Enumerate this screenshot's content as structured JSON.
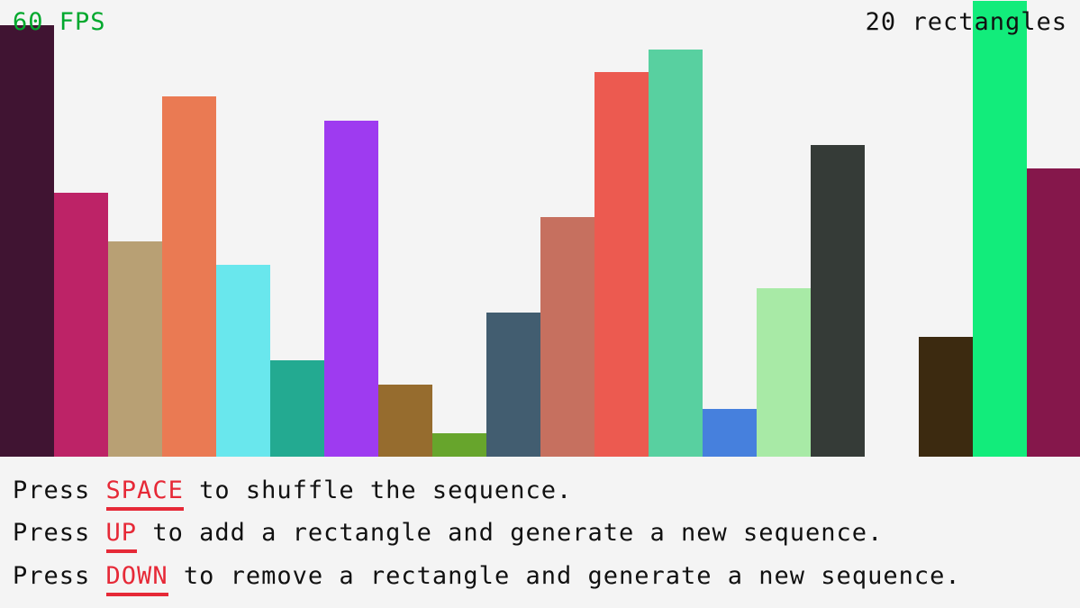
{
  "hud": {
    "fps": "60 FPS",
    "count": "20 rectangles",
    "fps_color": "#00a82d"
  },
  "instructions": [
    {
      "prefix": "Press ",
      "key": "SPACE",
      "suffix": " to shuffle the sequence."
    },
    {
      "prefix": "Press ",
      "key": "UP",
      "suffix": " to add a rectangle and generate a new sequence."
    },
    {
      "prefix": "Press ",
      "key": "DOWN",
      "suffix": " to remove a rectangle and generate a new sequence."
    }
  ],
  "key_color": "#e62937",
  "chart_data": {
    "type": "bar",
    "max_value": 507,
    "values": [
      479,
      293,
      239,
      400,
      213,
      107,
      373,
      80,
      26,
      160,
      266,
      427,
      452,
      53,
      187,
      346,
      0,
      133,
      506,
      320
    ],
    "colors": [
      "#401432",
      "#bd2367",
      "#b8a074",
      "#ea7a53",
      "#69e7ed",
      "#23aa91",
      "#9e3bf0",
      "#966c2e",
      "#67a52c",
      "#425d70",
      "#c6705f",
      "#ec5a50",
      "#58d0a0",
      "#4680dd",
      "#a8eaa6",
      "#353b37",
      "#f4f4f4",
      "#3c2a10",
      "#12ec7b",
      "#85174b"
    ]
  }
}
